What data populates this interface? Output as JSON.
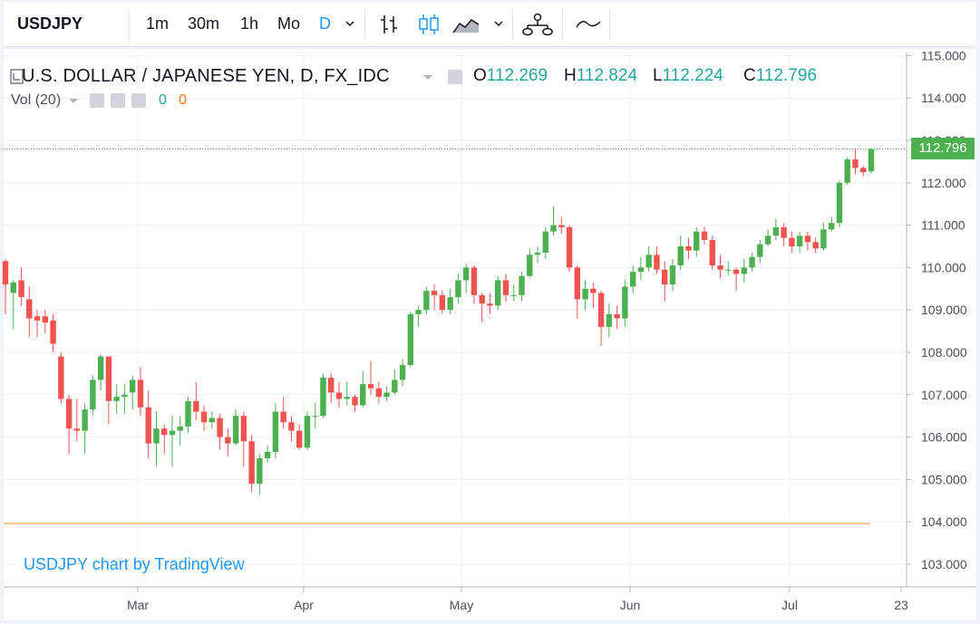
{
  "toolbar": {
    "symbol": "USDJPY",
    "timeframes": [
      "1m",
      "30m",
      "1h",
      "Mo",
      "D"
    ],
    "active_timeframe": "D"
  },
  "legend": {
    "title": "U.S. DOLLAR / JAPANESE YEN, D, FX_IDC",
    "open_label": "O",
    "open": "112.269",
    "high_label": "H",
    "high": "112.824",
    "low_label": "L",
    "low": "112.224",
    "close_label": "C",
    "close": "112.796",
    "volume_label": "Vol (20)",
    "volume_value": "0",
    "volume_ma": "0"
  },
  "watermark": "USDJPY chart by TradingView",
  "last_price": "112.796",
  "colors": {
    "up": "#26a69a",
    "up_candle": "#4caf50",
    "down": "#ef5350",
    "accent": "#2196f3",
    "horizontal_line": "#f5a142"
  },
  "chart_data": {
    "type": "candlestick",
    "y_axis": {
      "min": 103.0,
      "max": 115.0,
      "ticks": [
        "103.000",
        "104.000",
        "105.000",
        "106.000",
        "107.000",
        "108.000",
        "109.000",
        "110.000",
        "111.000",
        "112.000",
        "113.000",
        "114.000",
        "115.000"
      ]
    },
    "x_axis": {
      "labels": [
        "Mar",
        "Apr",
        "May",
        "Jun",
        "Jul",
        "23"
      ]
    },
    "horizontal_line": 103.96,
    "last_price": 112.796,
    "candles": [
      [
        110.15,
        109.6,
        110.2,
        108.9
      ],
      [
        109.4,
        109.65,
        109.7,
        108.55
      ],
      [
        109.7,
        109.3,
        110.0,
        109.1
      ],
      [
        109.25,
        108.8,
        109.55,
        108.35
      ],
      [
        108.85,
        108.75,
        109.0,
        108.35
      ],
      [
        108.85,
        108.7,
        109.0,
        108.45
      ],
      [
        108.75,
        108.2,
        108.9,
        108.0
      ],
      [
        107.9,
        106.9,
        108.0,
        106.8
      ],
      [
        106.9,
        106.2,
        107.0,
        105.6
      ],
      [
        106.2,
        106.15,
        106.9,
        105.9
      ],
      [
        106.15,
        106.65,
        106.8,
        105.6
      ],
      [
        106.65,
        107.35,
        107.45,
        106.5
      ],
      [
        107.35,
        107.9,
        107.95,
        107.1
      ],
      [
        107.9,
        106.85,
        107.9,
        106.3
      ],
      [
        106.85,
        106.95,
        107.25,
        106.55
      ],
      [
        106.95,
        107.0,
        107.25,
        106.55
      ],
      [
        107.05,
        107.35,
        107.45,
        106.65
      ],
      [
        107.35,
        106.7,
        107.65,
        106.5
      ],
      [
        106.7,
        105.85,
        107.1,
        105.5
      ],
      [
        105.85,
        106.2,
        106.6,
        105.3
      ],
      [
        106.2,
        106.05,
        106.3,
        105.6
      ],
      [
        106.05,
        106.15,
        106.5,
        105.3
      ],
      [
        106.15,
        106.25,
        106.5,
        105.8
      ],
      [
        106.25,
        106.85,
        106.95,
        106.1
      ],
      [
        106.85,
        106.6,
        107.3,
        106.4
      ],
      [
        106.6,
        106.35,
        106.75,
        106.15
      ],
      [
        106.35,
        106.45,
        106.6,
        106.2
      ],
      [
        106.45,
        106.0,
        106.55,
        105.7
      ],
      [
        106.0,
        105.85,
        106.2,
        105.55
      ],
      [
        105.85,
        106.5,
        106.65,
        105.8
      ],
      [
        106.5,
        105.9,
        106.6,
        105.3
      ],
      [
        105.9,
        104.9,
        106.05,
        104.7
      ],
      [
        104.9,
        105.5,
        105.6,
        104.65
      ],
      [
        105.5,
        105.65,
        105.8,
        105.4
      ],
      [
        105.65,
        106.6,
        106.8,
        105.5
      ],
      [
        106.6,
        106.35,
        106.95,
        106.2
      ],
      [
        106.35,
        106.15,
        106.5,
        105.9
      ],
      [
        106.15,
        105.75,
        106.3,
        105.7
      ],
      [
        105.75,
        106.5,
        106.6,
        105.7
      ],
      [
        106.5,
        106.5,
        106.8,
        106.2
      ],
      [
        106.5,
        107.4,
        107.5,
        106.45
      ],
      [
        107.4,
        107.05,
        107.5,
        106.8
      ],
      [
        107.05,
        106.9,
        107.3,
        106.7
      ],
      [
        106.9,
        106.95,
        107.3,
        106.75
      ],
      [
        106.95,
        106.75,
        107.0,
        106.6
      ],
      [
        106.75,
        107.25,
        107.55,
        106.7
      ],
      [
        107.25,
        107.15,
        107.8,
        107.0
      ],
      [
        107.15,
        106.95,
        107.3,
        106.8
      ],
      [
        106.95,
        107.05,
        107.2,
        106.85
      ],
      [
        107.05,
        107.35,
        107.6,
        107.0
      ],
      [
        107.35,
        107.7,
        107.85,
        107.2
      ],
      [
        107.7,
        108.9,
        108.95,
        107.65
      ],
      [
        108.9,
        109.0,
        109.1,
        108.6
      ],
      [
        109.0,
        109.45,
        109.55,
        108.9
      ],
      [
        109.45,
        109.35,
        109.6,
        109.0
      ],
      [
        109.35,
        109.0,
        109.45,
        108.9
      ],
      [
        109.0,
        109.3,
        109.5,
        108.9
      ],
      [
        109.3,
        109.7,
        109.85,
        109.15
      ],
      [
        109.7,
        110.0,
        110.1,
        109.4
      ],
      [
        110.0,
        109.35,
        110.05,
        109.15
      ],
      [
        109.35,
        109.15,
        109.4,
        108.7
      ],
      [
        109.15,
        109.1,
        109.4,
        108.9
      ],
      [
        109.1,
        109.7,
        109.8,
        109.0
      ],
      [
        109.7,
        109.35,
        109.85,
        109.2
      ],
      [
        109.35,
        109.35,
        109.6,
        109.2
      ],
      [
        109.35,
        109.8,
        109.9,
        109.2
      ],
      [
        109.8,
        110.3,
        110.45,
        109.75
      ],
      [
        110.3,
        110.35,
        110.5,
        110.1
      ],
      [
        110.35,
        110.85,
        110.95,
        110.2
      ],
      [
        110.85,
        111.0,
        111.45,
        110.75
      ],
      [
        111.0,
        110.95,
        111.2,
        110.8
      ],
      [
        110.95,
        110.0,
        111.0,
        109.9
      ],
      [
        110.0,
        109.25,
        110.05,
        108.8
      ],
      [
        109.25,
        109.5,
        109.7,
        109.0
      ],
      [
        109.5,
        109.4,
        109.65,
        109.05
      ],
      [
        109.4,
        108.6,
        109.45,
        108.15
      ],
      [
        108.6,
        108.9,
        109.15,
        108.35
      ],
      [
        108.9,
        108.8,
        109.1,
        108.55
      ],
      [
        108.8,
        109.55,
        109.7,
        108.6
      ],
      [
        109.55,
        109.9,
        110.05,
        109.4
      ],
      [
        109.9,
        110.0,
        110.25,
        109.7
      ],
      [
        110.0,
        110.3,
        110.5,
        109.9
      ],
      [
        110.3,
        109.95,
        110.5,
        109.85
      ],
      [
        109.95,
        109.6,
        110.15,
        109.2
      ],
      [
        109.6,
        110.05,
        110.2,
        109.45
      ],
      [
        110.05,
        110.5,
        110.75,
        109.95
      ],
      [
        110.5,
        110.4,
        110.7,
        110.2
      ],
      [
        110.4,
        110.85,
        110.95,
        110.25
      ],
      [
        110.85,
        110.65,
        110.95,
        110.55
      ],
      [
        110.65,
        110.05,
        110.75,
        109.95
      ],
      [
        110.05,
        109.95,
        110.3,
        109.75
      ],
      [
        109.95,
        109.95,
        110.15,
        109.8
      ],
      [
        109.95,
        109.85,
        110.0,
        109.45
      ],
      [
        109.85,
        110.0,
        110.2,
        109.65
      ],
      [
        110.0,
        110.25,
        110.35,
        109.9
      ],
      [
        110.25,
        110.55,
        110.65,
        110.1
      ],
      [
        110.55,
        110.75,
        110.9,
        110.5
      ],
      [
        110.75,
        110.95,
        111.15,
        110.65
      ],
      [
        110.95,
        110.7,
        111.05,
        110.5
      ],
      [
        110.7,
        110.5,
        110.85,
        110.35
      ],
      [
        110.5,
        110.75,
        110.85,
        110.35
      ],
      [
        110.75,
        110.6,
        110.85,
        110.4
      ],
      [
        110.6,
        110.45,
        110.7,
        110.35
      ],
      [
        110.45,
        110.9,
        111.05,
        110.4
      ],
      [
        110.9,
        111.05,
        111.2,
        110.85
      ],
      [
        111.05,
        112.0,
        112.05,
        110.95
      ],
      [
        112.0,
        112.55,
        112.6,
        111.95
      ],
      [
        112.55,
        112.35,
        112.8,
        112.2
      ],
      [
        112.35,
        112.25,
        112.4,
        112.15
      ],
      [
        112.269,
        112.796,
        112.824,
        112.224
      ]
    ]
  }
}
